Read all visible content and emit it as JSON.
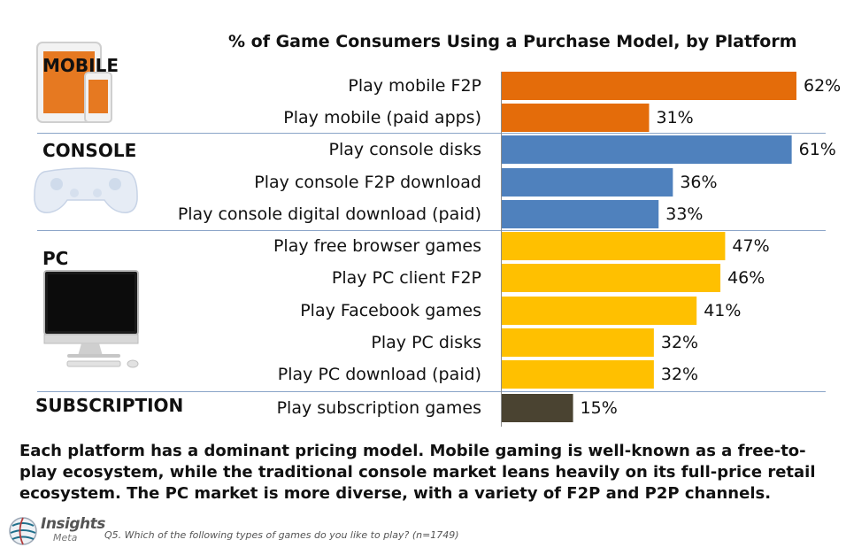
{
  "chart_data": {
    "type": "bar",
    "orientation": "horizontal",
    "title": "% of Game Consumers Using a Purchase Model, by Platform",
    "xlim": [
      0,
      62
    ],
    "groups": [
      {
        "name": "MOBILE",
        "color": "#E46C0A",
        "bars": [
          {
            "label": "Play mobile F2P",
            "value": 62,
            "display": "62%"
          },
          {
            "label": "Play mobile (paid apps)",
            "value": 31,
            "display": "31%"
          }
        ]
      },
      {
        "name": "CONSOLE",
        "color": "#4F81BD",
        "bars": [
          {
            "label": "Play console disks",
            "value": 61,
            "display": "61%"
          },
          {
            "label": "Play console F2P download",
            "value": 36,
            "display": "36%"
          },
          {
            "label": "Play console digital download (paid)",
            "value": 33,
            "display": "33%"
          }
        ]
      },
      {
        "name": "PC",
        "color": "#FFC000",
        "bars": [
          {
            "label": "Play free browser games",
            "value": 47,
            "display": "47%"
          },
          {
            "label": "Play PC client F2P",
            "value": 46,
            "display": "46%"
          },
          {
            "label": "Play Facebook games",
            "value": 41,
            "display": "41%"
          },
          {
            "label": "Play PC disks",
            "value": 32,
            "display": "32%"
          },
          {
            "label": "Play PC download (paid)",
            "value": 32,
            "display": "32%"
          }
        ]
      },
      {
        "name": "SUBSCRIPTION",
        "color": "#4A4331",
        "bars": [
          {
            "label": "Play subscription games",
            "value": 15,
            "display": "15%"
          }
        ]
      }
    ]
  },
  "caption": "Each platform has a dominant pricing model. Mobile gaming is well-known as a free-to-play ecosystem, while the traditional console market leans heavily on its full-price retail ecosystem.  The PC market is more diverse, with a variety of F2P and P2P channels.",
  "footnote": "Q5. Which of the following types of games do you like to play? (n=1749)",
  "logo": {
    "name": "Insights",
    "sub": "Meta"
  },
  "icons": [
    "tablet-phone-icon",
    "game-controller-icon",
    "desktop-computer-icon",
    "globe-logo-icon"
  ]
}
